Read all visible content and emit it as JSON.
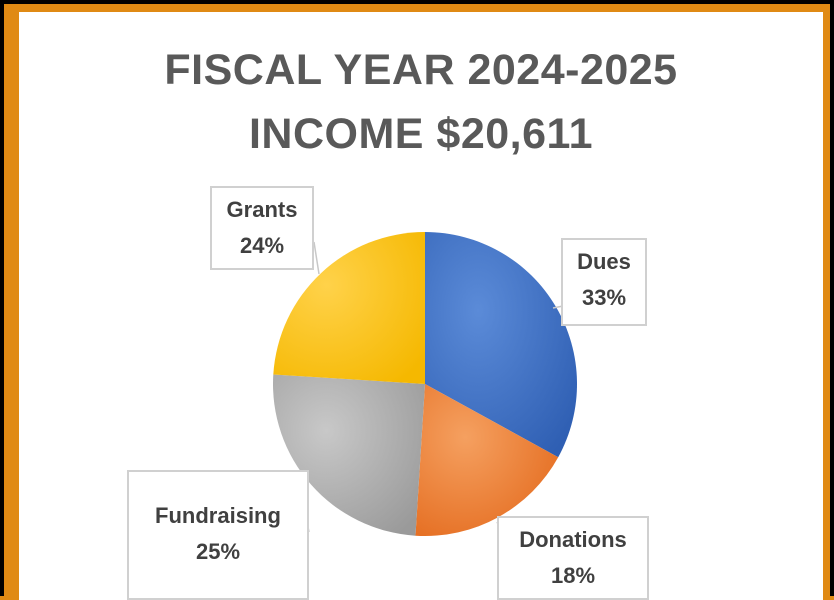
{
  "chart_data": {
    "type": "pie",
    "title": "FISCAL YEAR 2024-2025",
    "subtitle": "INCOME $20,611",
    "slices": [
      {
        "name": "Dues",
        "percent_label": "33%",
        "value": 33,
        "color": "#4472c4"
      },
      {
        "name": "Donations",
        "percent_label": "18%",
        "value": 18,
        "color": "#ed7d31"
      },
      {
        "name": "Fundraising",
        "percent_label": "25%",
        "value": 25,
        "color": "#a5a5a5"
      },
      {
        "name": "Grants",
        "percent_label": "24%",
        "value": 24,
        "color": "#ffc000"
      }
    ],
    "start_angle": "12 o'clock",
    "direction": "clockwise",
    "legend": "none"
  },
  "frame": {
    "border_color": "#e08a14",
    "background": "#ffffff"
  }
}
